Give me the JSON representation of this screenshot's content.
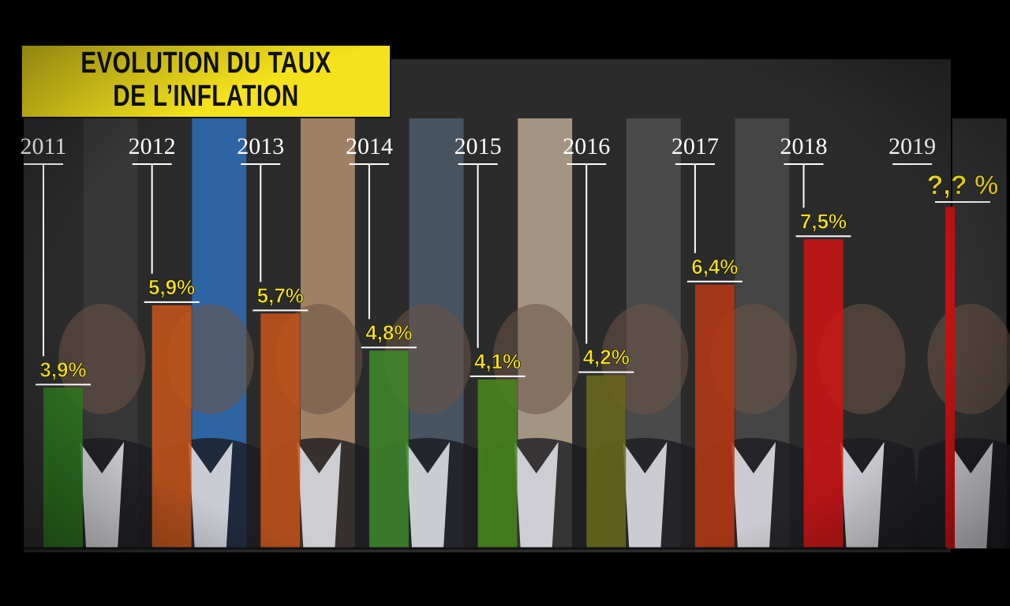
{
  "chart_data": {
    "type": "bar",
    "title": "EVOLUTION DU TAUX DE L'INFLATION",
    "title_lines": [
      "EVOLUTION DU TAUX",
      "DE L’INFLATION"
    ],
    "categories": [
      "2011",
      "2012",
      "2013",
      "2014",
      "2015",
      "2016",
      "2017",
      "2018",
      "2019"
    ],
    "values": [
      3.9,
      5.9,
      5.7,
      4.8,
      4.1,
      4.2,
      6.4,
      7.5,
      null
    ],
    "labels": [
      "3,9%",
      "5,9%",
      "5,7%",
      "4,8%",
      "4,1%",
      "4,2%",
      "6,4%",
      "7,5%",
      "?,? %"
    ],
    "bar_colors": [
      "#2f7a1f",
      "#c8561a",
      "#c8561a",
      "#3f8a2a",
      "#4a8a1c",
      "#6b6a1c",
      "#b83a14",
      "#d11414",
      "#c21212"
    ],
    "ylim": [
      0,
      9
    ],
    "label_color": "#f4e21c",
    "band_colors": [
      "#3a3a3a",
      "#2f6fb8",
      "#b39070",
      "#4d5a6c",
      "#b8a890",
      "#505050",
      "#4a4a4a",
      "#2a2a2a",
      "#3a3a3a"
    ]
  }
}
